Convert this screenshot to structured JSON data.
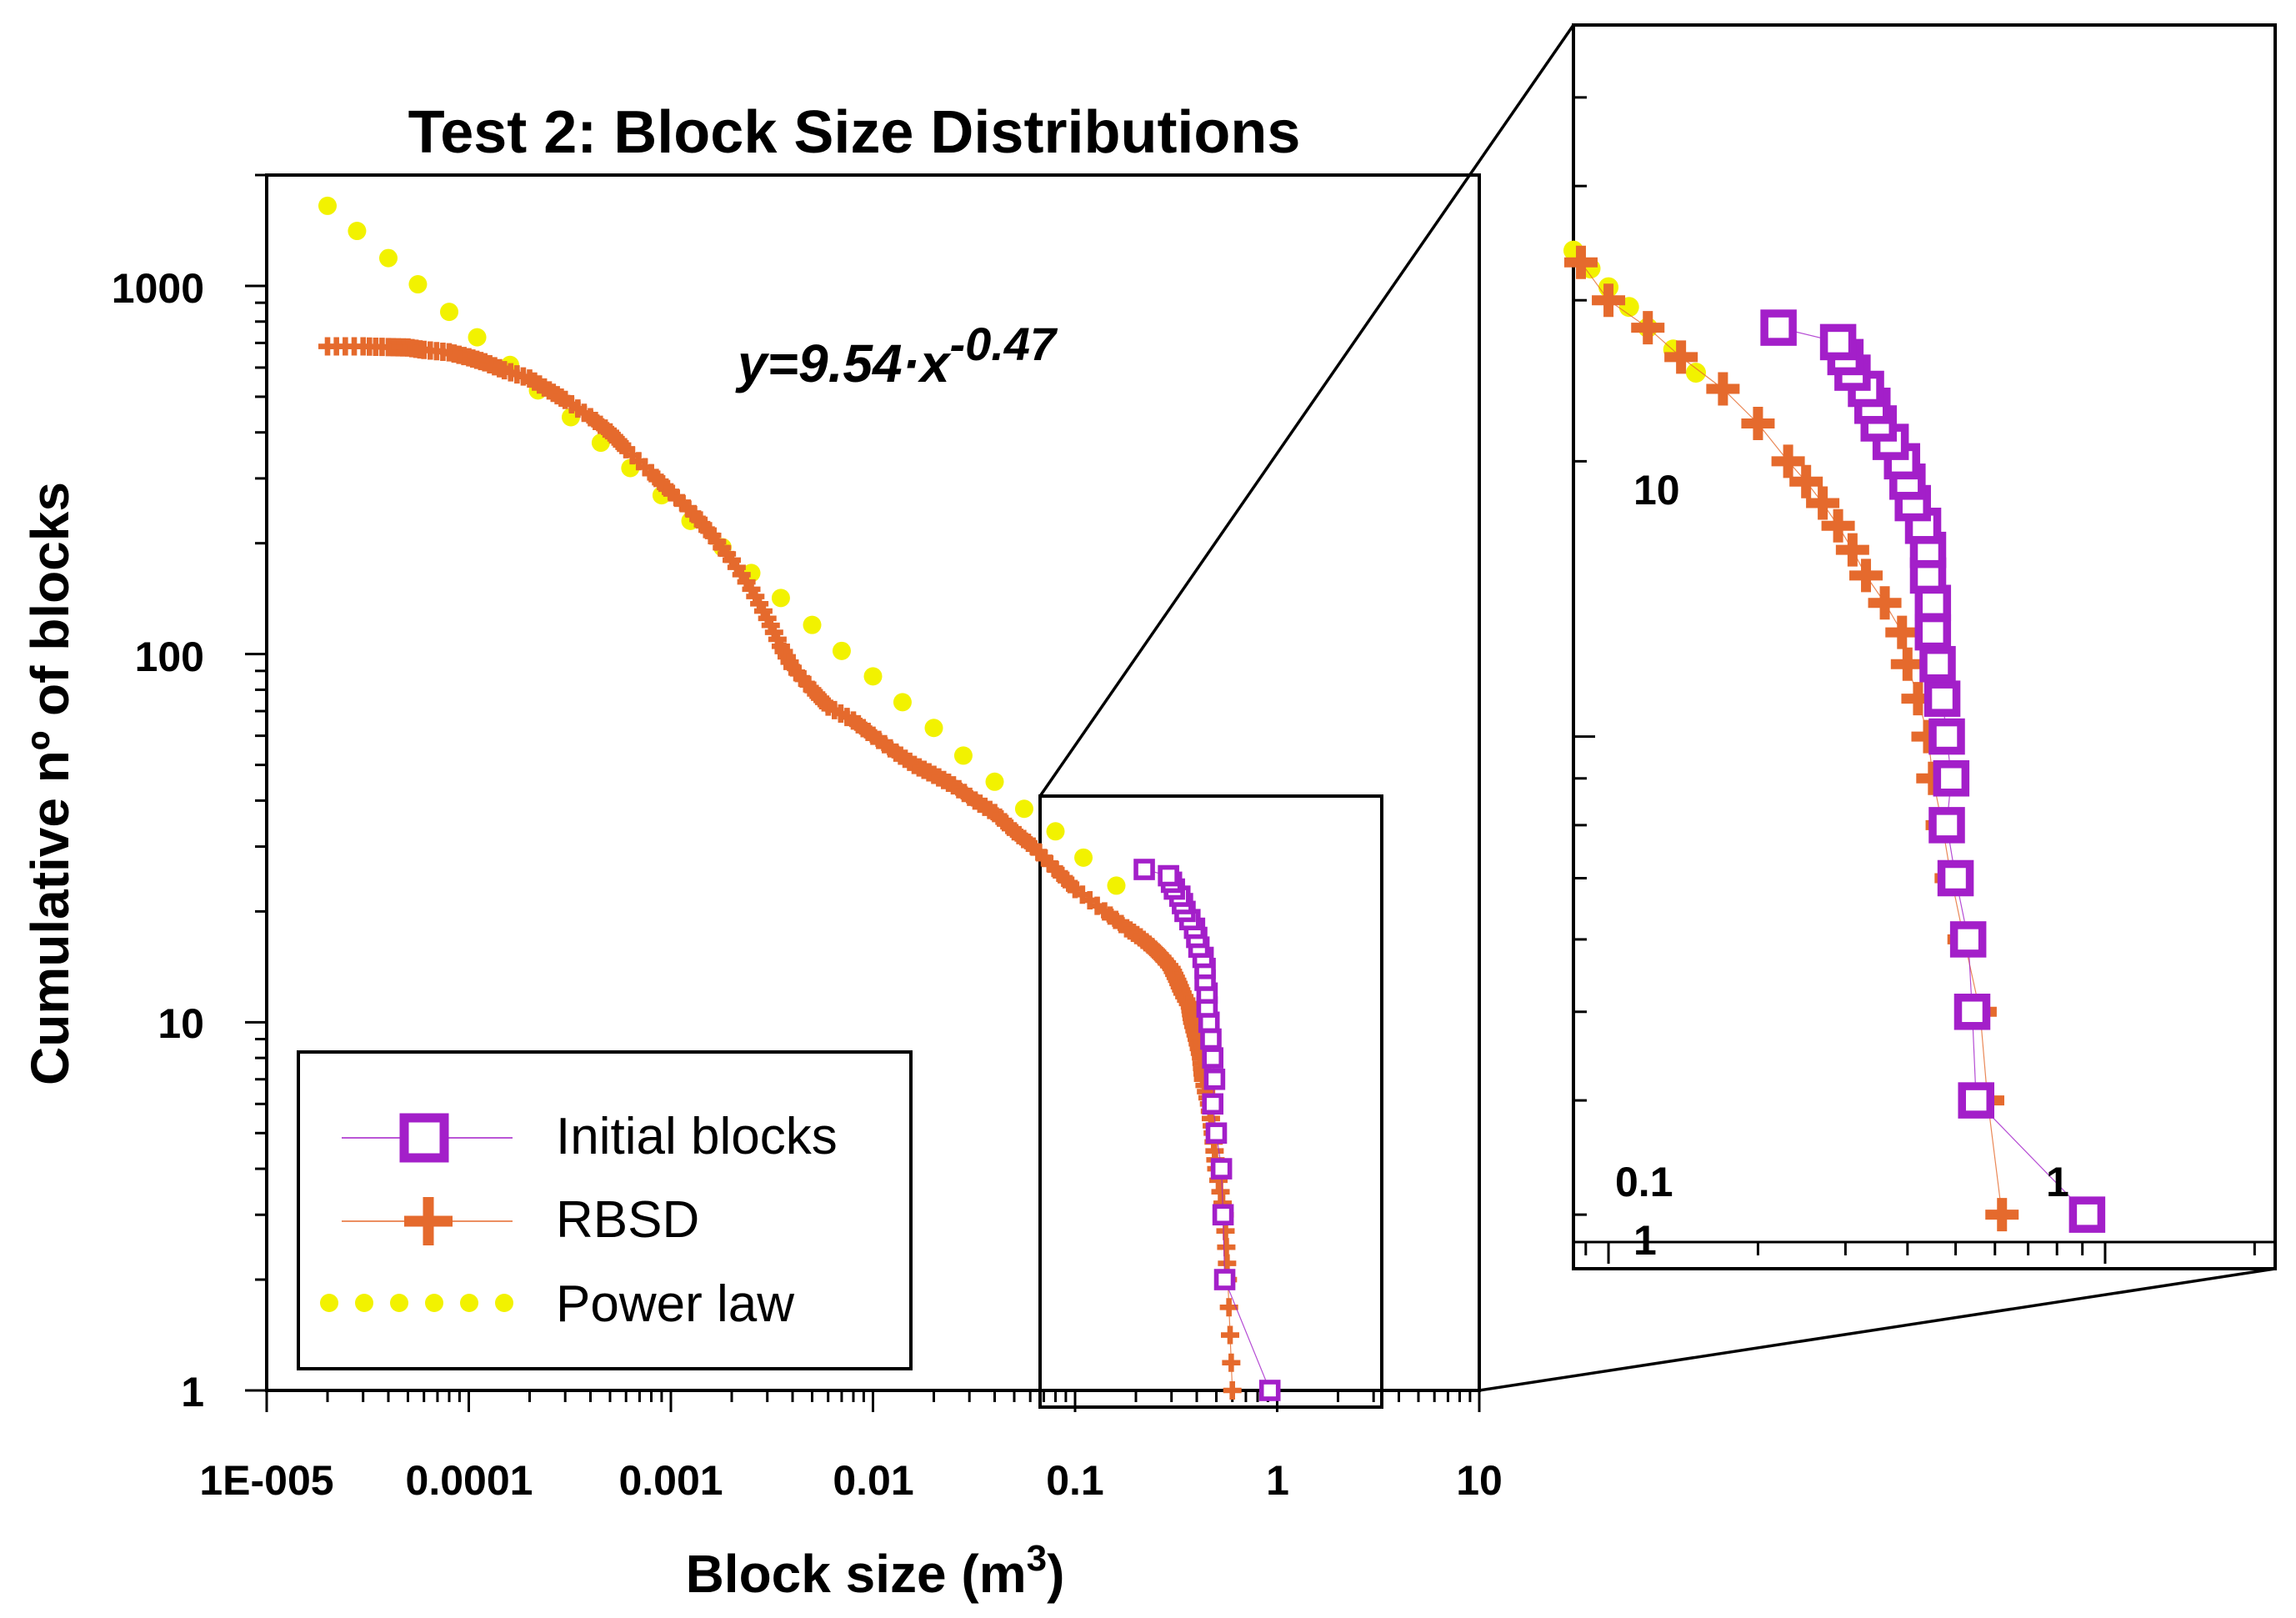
{
  "chart_data": {
    "type": "scatter",
    "title": "Test 2: Block Size Distributions",
    "xlabel": "Block size (m3)",
    "xlabel_base": "Block size (m",
    "xlabel_sup": "3",
    "xlabel_close": ")",
    "ylabel": "Cumulative nº of blocks",
    "xscale": "log",
    "yscale": "log",
    "xlim": [
      1e-05,
      10
    ],
    "ylim": [
      1,
      2000
    ],
    "x_tick_labels": [
      "1E-005",
      "0.0001",
      "0.001",
      "0.01",
      "0.1",
      "1",
      "10"
    ],
    "y_tick_labels": [
      "1",
      "10",
      "100",
      "1000"
    ],
    "equation": {
      "text": "y=9.54·x",
      "exponent": "-0.47"
    },
    "legend": {
      "position": "bottom-left",
      "entries": [
        "Initial blocks",
        "RBSD",
        "Power law"
      ]
    },
    "colors": {
      "initial": "#a31fc9",
      "rbsd": "#e56a2d",
      "power": "#f2f200"
    },
    "series": [
      {
        "name": "Initial blocks",
        "marker": "square",
        "points": [
          [
            0.92,
            1
          ],
          [
            0.55,
            2
          ],
          [
            0.54,
            3
          ],
          [
            0.53,
            4
          ],
          [
            0.5,
            5
          ],
          [
            0.48,
            6
          ],
          [
            0.49,
            7
          ],
          [
            0.48,
            8
          ],
          [
            0.47,
            9
          ],
          [
            0.46,
            10
          ],
          [
            0.45,
            11
          ],
          [
            0.45,
            12
          ],
          [
            0.44,
            13
          ],
          [
            0.44,
            14
          ],
          [
            0.43,
            15
          ],
          [
            0.41,
            16
          ],
          [
            0.4,
            17
          ],
          [
            0.39,
            18
          ],
          [
            0.37,
            19
          ],
          [
            0.35,
            20
          ],
          [
            0.34,
            21
          ],
          [
            0.33,
            22
          ],
          [
            0.31,
            23
          ],
          [
            0.3,
            24
          ],
          [
            0.29,
            25
          ],
          [
            0.22,
            26
          ]
        ]
      },
      {
        "name": "RBSD",
        "marker": "plus",
        "points": [
          [
            0.6,
            1
          ],
          [
            0.57,
            2
          ],
          [
            0.55,
            3
          ],
          [
            0.5,
            4
          ],
          [
            0.48,
            5
          ],
          [
            0.46,
            6
          ],
          [
            0.43,
            7
          ],
          [
            0.42,
            8
          ],
          [
            0.4,
            9
          ],
          [
            0.38,
            10
          ],
          [
            0.37,
            11
          ],
          [
            0.34,
            12
          ],
          [
            0.32,
            13
          ],
          [
            0.3,
            14
          ],
          [
            0.27,
            15
          ],
          [
            0.24,
            16
          ],
          [
            0.21,
            17
          ],
          [
            0.18,
            18
          ],
          [
            0.14,
            20
          ],
          [
            0.1,
            23
          ],
          [
            0.08,
            26
          ],
          [
            0.062,
            30
          ],
          [
            0.05,
            33
          ],
          [
            0.04,
            37
          ],
          [
            0.032,
            40
          ],
          [
            0.025,
            44
          ],
          [
            0.02,
            47
          ],
          [
            0.016,
            50
          ],
          [
            0.013,
            54
          ],
          [
            0.01,
            60
          ],
          [
            0.008,
            66
          ],
          [
            0.006,
            72
          ],
          [
            0.005,
            80
          ],
          [
            0.004,
            92
          ],
          [
            0.0035,
            105
          ],
          [
            0.003,
            125
          ],
          [
            0.0025,
            150
          ],
          [
            0.002,
            180
          ],
          [
            0.0016,
            210
          ],
          [
            0.0013,
            240
          ],
          [
            0.001,
            275
          ],
          [
            0.0008,
            310
          ],
          [
            0.0006,
            360
          ],
          [
            0.0005,
            400
          ],
          [
            0.0004,
            440
          ],
          [
            0.0003,
            490
          ],
          [
            0.00025,
            520
          ],
          [
            0.0002,
            560
          ],
          [
            0.00015,
            590
          ],
          [
            0.00012,
            620
          ],
          [
            0.0001,
            640
          ],
          [
            8e-05,
            660
          ],
          [
            6e-05,
            670
          ],
          [
            5e-05,
            680
          ],
          [
            4e-05,
            682
          ],
          [
            3e-05,
            685
          ],
          [
            2e-05,
            685
          ]
        ]
      },
      {
        "name": "Power law",
        "marker": "dot",
        "points": [
          [
            2e-05,
            1650
          ],
          [
            2.8e-05,
            1410
          ],
          [
            4e-05,
            1190
          ],
          [
            5.6e-05,
            1010
          ],
          [
            8e-05,
            850
          ],
          [
            0.00011,
            725
          ],
          [
            0.00016,
            610
          ],
          [
            0.00022,
            520
          ],
          [
            0.00032,
            440
          ],
          [
            0.00045,
            375
          ],
          [
            0.00063,
            320
          ],
          [
            0.0009,
            270
          ],
          [
            0.00125,
            230
          ],
          [
            0.0018,
            195
          ],
          [
            0.0025,
            166
          ],
          [
            0.0035,
            142
          ],
          [
            0.005,
            120
          ],
          [
            0.007,
            102
          ],
          [
            0.01,
            87
          ],
          [
            0.014,
            74
          ],
          [
            0.02,
            63
          ],
          [
            0.028,
            53
          ],
          [
            0.04,
            45
          ],
          [
            0.056,
            38
          ],
          [
            0.08,
            33
          ],
          [
            0.11,
            28
          ],
          [
            0.16,
            23.5
          ]
        ]
      }
    ],
    "inset": {
      "xlim": [
        0.085,
        2.2
      ],
      "ylim": [
        2.8,
        60
      ],
      "x_tick_labels": [
        "0.1",
        "1"
      ],
      "y_tick_labels": [
        "1",
        "10"
      ],
      "initial_points": [
        [
          0.92,
          3
        ],
        [
          0.55,
          4
        ],
        [
          0.54,
          5
        ],
        [
          0.53,
          6
        ],
        [
          0.5,
          7
        ],
        [
          0.48,
          8
        ],
        [
          0.49,
          9
        ],
        [
          0.48,
          10
        ],
        [
          0.47,
          11
        ],
        [
          0.46,
          12
        ],
        [
          0.45,
          13
        ],
        [
          0.45,
          14
        ],
        [
          0.44,
          15
        ],
        [
          0.44,
          16
        ],
        [
          0.43,
          17
        ],
        [
          0.41,
          18
        ],
        [
          0.4,
          19
        ],
        [
          0.39,
          20
        ],
        [
          0.37,
          21
        ],
        [
          0.35,
          22
        ],
        [
          0.34,
          23
        ],
        [
          0.33,
          24
        ],
        [
          0.31,
          25
        ],
        [
          0.3,
          26
        ],
        [
          0.29,
          27
        ],
        [
          0.22,
          28
        ]
      ],
      "rbsd_points": [
        [
          0.62,
          3
        ],
        [
          0.58,
          4
        ],
        [
          0.56,
          5
        ],
        [
          0.52,
          6
        ],
        [
          0.49,
          7
        ],
        [
          0.47,
          8
        ],
        [
          0.45,
          9
        ],
        [
          0.44,
          10
        ],
        [
          0.42,
          11
        ],
        [
          0.4,
          12
        ],
        [
          0.39,
          13
        ],
        [
          0.36,
          14
        ],
        [
          0.33,
          15
        ],
        [
          0.31,
          16
        ],
        [
          0.29,
          17
        ],
        [
          0.27,
          18
        ],
        [
          0.25,
          19
        ],
        [
          0.23,
          20
        ],
        [
          0.2,
          22
        ],
        [
          0.17,
          24
        ],
        [
          0.14,
          26
        ],
        [
          0.12,
          28
        ],
        [
          0.1,
          30
        ],
        [
          0.088,
          33
        ]
      ],
      "power_points": [
        [
          0.085,
          34
        ],
        [
          0.092,
          32.5
        ],
        [
          0.1,
          31
        ],
        [
          0.11,
          29.5
        ],
        [
          0.12,
          28
        ],
        [
          0.135,
          26.5
        ],
        [
          0.15,
          25
        ]
      ]
    }
  }
}
